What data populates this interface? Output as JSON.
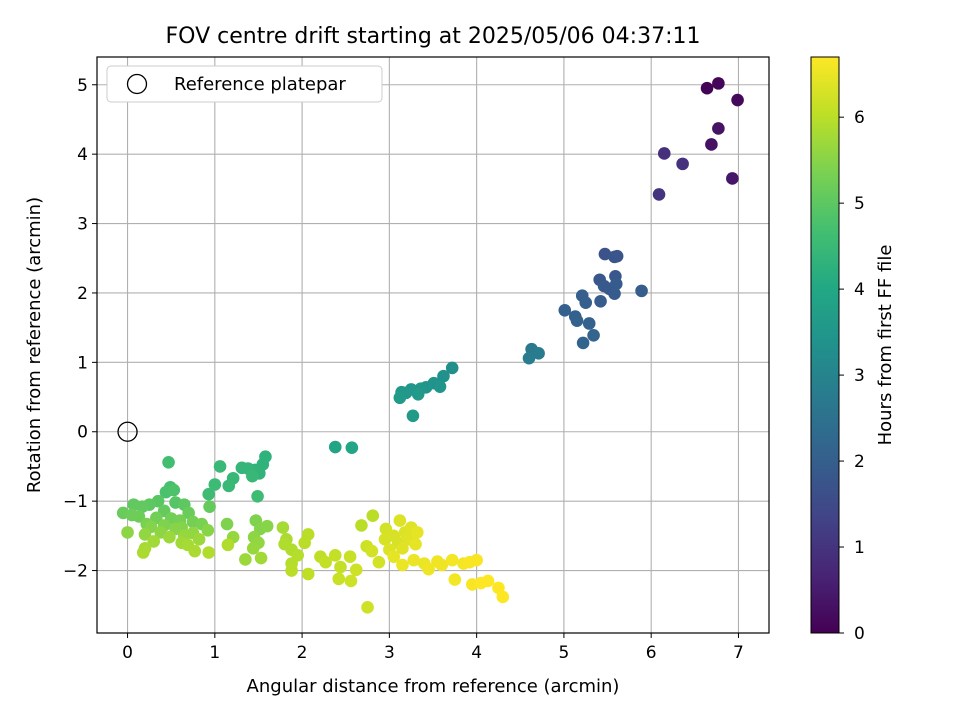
{
  "chart_data": {
    "type": "scatter",
    "title": "FOV centre drift starting at 2025/05/06 04:37:11",
    "xlabel": "Angular distance from reference (arcmin)",
    "ylabel": "Rotation from reference (arcmin)",
    "xlim": [
      -0.35,
      7.35
    ],
    "ylim": [
      -2.9,
      5.4
    ],
    "xticks": [
      0,
      1,
      2,
      3,
      4,
      5,
      6,
      7
    ],
    "yticks": [
      -2,
      -1,
      0,
      1,
      2,
      3,
      4,
      5
    ],
    "grid": true,
    "legend": {
      "placement": "top-left",
      "entries": [
        "Reference platepar"
      ]
    },
    "reference_point": {
      "x": 0,
      "y": 0,
      "marker": "open-circle"
    },
    "colorbar": {
      "label": "Hours from first FF file",
      "colormap": "viridis",
      "range": [
        0,
        6.7
      ],
      "ticks": [
        0,
        1,
        2,
        3,
        4,
        5,
        6
      ]
    },
    "points": [
      {
        "x": 6.64,
        "y": 4.95,
        "h": 0.05
      },
      {
        "x": 6.77,
        "y": 5.02,
        "h": 0.1
      },
      {
        "x": 6.99,
        "y": 4.78,
        "h": 0.15
      },
      {
        "x": 6.69,
        "y": 4.14,
        "h": 0.3
      },
      {
        "x": 6.77,
        "y": 4.37,
        "h": 0.35
      },
      {
        "x": 6.93,
        "y": 3.65,
        "h": 0.4
      },
      {
        "x": 6.15,
        "y": 4.01,
        "h": 0.9
      },
      {
        "x": 6.36,
        "y": 3.86,
        "h": 0.95
      },
      {
        "x": 6.09,
        "y": 3.42,
        "h": 1.0
      },
      {
        "x": 5.47,
        "y": 2.56,
        "h": 1.7
      },
      {
        "x": 5.58,
        "y": 2.52,
        "h": 1.75
      },
      {
        "x": 5.61,
        "y": 2.53,
        "h": 1.75
      },
      {
        "x": 5.41,
        "y": 2.19,
        "h": 1.8
      },
      {
        "x": 5.59,
        "y": 2.24,
        "h": 1.8
      },
      {
        "x": 5.46,
        "y": 2.1,
        "h": 1.85
      },
      {
        "x": 5.52,
        "y": 2.06,
        "h": 1.85
      },
      {
        "x": 5.6,
        "y": 2.13,
        "h": 1.9
      },
      {
        "x": 5.58,
        "y": 1.99,
        "h": 1.9
      },
      {
        "x": 5.42,
        "y": 1.88,
        "h": 1.95
      },
      {
        "x": 5.89,
        "y": 2.03,
        "h": 1.95
      },
      {
        "x": 5.21,
        "y": 1.96,
        "h": 2.0
      },
      {
        "x": 5.25,
        "y": 1.86,
        "h": 2.0
      },
      {
        "x": 5.01,
        "y": 1.75,
        "h": 2.05
      },
      {
        "x": 5.13,
        "y": 1.66,
        "h": 2.05
      },
      {
        "x": 5.15,
        "y": 1.6,
        "h": 2.1
      },
      {
        "x": 5.29,
        "y": 1.56,
        "h": 2.1
      },
      {
        "x": 5.34,
        "y": 1.39,
        "h": 2.15
      },
      {
        "x": 5.22,
        "y": 1.28,
        "h": 2.15
      },
      {
        "x": 4.63,
        "y": 1.19,
        "h": 2.7
      },
      {
        "x": 4.71,
        "y": 1.13,
        "h": 2.75
      },
      {
        "x": 4.6,
        "y": 1.06,
        "h": 2.8
      },
      {
        "x": 3.72,
        "y": 0.92,
        "h": 3.3
      },
      {
        "x": 3.62,
        "y": 0.8,
        "h": 3.35
      },
      {
        "x": 3.51,
        "y": 0.7,
        "h": 3.4
      },
      {
        "x": 3.58,
        "y": 0.65,
        "h": 3.45
      },
      {
        "x": 3.42,
        "y": 0.64,
        "h": 3.45
      },
      {
        "x": 3.36,
        "y": 0.62,
        "h": 3.5
      },
      {
        "x": 3.25,
        "y": 0.61,
        "h": 3.5
      },
      {
        "x": 3.14,
        "y": 0.57,
        "h": 3.55
      },
      {
        "x": 3.19,
        "y": 0.56,
        "h": 3.55
      },
      {
        "x": 3.33,
        "y": 0.54,
        "h": 3.6
      },
      {
        "x": 3.12,
        "y": 0.49,
        "h": 3.6
      },
      {
        "x": 3.27,
        "y": 0.23,
        "h": 3.65
      },
      {
        "x": 2.38,
        "y": -0.22,
        "h": 3.9
      },
      {
        "x": 2.57,
        "y": -0.23,
        "h": 3.95
      },
      {
        "x": 1.58,
        "y": -0.36,
        "h": 4.3
      },
      {
        "x": 1.55,
        "y": -0.47,
        "h": 4.3
      },
      {
        "x": 1.46,
        "y": -0.55,
        "h": 4.35
      },
      {
        "x": 1.51,
        "y": -0.6,
        "h": 4.35
      },
      {
        "x": 1.38,
        "y": -0.53,
        "h": 4.4
      },
      {
        "x": 1.31,
        "y": -0.52,
        "h": 4.4
      },
      {
        "x": 1.43,
        "y": -0.64,
        "h": 4.45
      },
      {
        "x": 1.21,
        "y": -0.67,
        "h": 4.45
      },
      {
        "x": 1.06,
        "y": -0.5,
        "h": 4.5
      },
      {
        "x": 1.16,
        "y": -0.78,
        "h": 4.5
      },
      {
        "x": 1.0,
        "y": -0.76,
        "h": 4.55
      },
      {
        "x": 0.93,
        "y": -0.9,
        "h": 4.6
      },
      {
        "x": 1.49,
        "y": -0.93,
        "h": 4.6
      },
      {
        "x": 0.47,
        "y": -0.44,
        "h": 4.65
      },
      {
        "x": 0.49,
        "y": -0.8,
        "h": 4.7
      },
      {
        "x": 0.44,
        "y": -0.87,
        "h": 4.75
      },
      {
        "x": 0.53,
        "y": -0.84,
        "h": 4.8
      },
      {
        "x": 0.55,
        "y": -1.02,
        "h": 4.9
      },
      {
        "x": 0.35,
        "y": -1.0,
        "h": 4.95
      },
      {
        "x": 0.65,
        "y": -1.05,
        "h": 5.0
      },
      {
        "x": 0.25,
        "y": -1.05,
        "h": 5.0
      },
      {
        "x": 0.07,
        "y": -1.05,
        "h": 5.05
      },
      {
        "x": 0.17,
        "y": -1.08,
        "h": 5.05
      },
      {
        "x": 0.94,
        "y": -1.08,
        "h": 5.1
      },
      {
        "x": 0.42,
        "y": -1.14,
        "h": 5.1
      },
      {
        "x": 0.7,
        "y": -1.17,
        "h": 5.15
      },
      {
        "x": -0.05,
        "y": -1.17,
        "h": 5.15
      },
      {
        "x": 0.05,
        "y": -1.2,
        "h": 5.2
      },
      {
        "x": 0.13,
        "y": -1.22,
        "h": 5.2
      },
      {
        "x": 0.33,
        "y": -1.24,
        "h": 5.25
      },
      {
        "x": 0.5,
        "y": -1.25,
        "h": 5.25
      },
      {
        "x": 0.6,
        "y": -1.28,
        "h": 5.3
      },
      {
        "x": 0.75,
        "y": -1.3,
        "h": 5.3
      },
      {
        "x": 0.85,
        "y": -1.33,
        "h": 5.35
      },
      {
        "x": 0.22,
        "y": -1.33,
        "h": 5.35
      },
      {
        "x": 1.14,
        "y": -1.33,
        "h": 5.4
      },
      {
        "x": 0.42,
        "y": -1.35,
        "h": 5.4
      },
      {
        "x": 0.27,
        "y": -1.37,
        "h": 5.45
      },
      {
        "x": 0.62,
        "y": -1.38,
        "h": 5.45
      },
      {
        "x": 0.55,
        "y": -1.4,
        "h": 5.5
      },
      {
        "x": 0.92,
        "y": -1.42,
        "h": 5.5
      },
      {
        "x": 0.0,
        "y": -1.45,
        "h": 5.55
      },
      {
        "x": 0.38,
        "y": -1.45,
        "h": 5.55
      },
      {
        "x": 0.75,
        "y": -1.46,
        "h": 5.6
      },
      {
        "x": 0.2,
        "y": -1.48,
        "h": 5.6
      },
      {
        "x": 0.65,
        "y": -1.5,
        "h": 5.65
      },
      {
        "x": 1.21,
        "y": -1.52,
        "h": 5.65
      },
      {
        "x": 0.48,
        "y": -1.52,
        "h": 5.7
      },
      {
        "x": 0.82,
        "y": -1.55,
        "h": 5.7
      },
      {
        "x": 0.3,
        "y": -1.58,
        "h": 5.75
      },
      {
        "x": 0.62,
        "y": -1.6,
        "h": 5.75
      },
      {
        "x": 0.69,
        "y": -1.63,
        "h": 5.8
      },
      {
        "x": 0.2,
        "y": -1.68,
        "h": 5.8
      },
      {
        "x": 0.77,
        "y": -1.72,
        "h": 5.85
      },
      {
        "x": 0.18,
        "y": -1.74,
        "h": 5.85
      },
      {
        "x": 0.93,
        "y": -1.74,
        "h": 5.9
      },
      {
        "x": 1.15,
        "y": -1.63,
        "h": 5.9
      },
      {
        "x": 1.47,
        "y": -1.28,
        "h": 5.4
      },
      {
        "x": 1.52,
        "y": -1.4,
        "h": 5.45
      },
      {
        "x": 1.6,
        "y": -1.36,
        "h": 5.5
      },
      {
        "x": 1.45,
        "y": -1.52,
        "h": 5.55
      },
      {
        "x": 1.5,
        "y": -1.6,
        "h": 5.6
      },
      {
        "x": 1.44,
        "y": -1.68,
        "h": 5.65
      },
      {
        "x": 1.35,
        "y": -1.84,
        "h": 5.7
      },
      {
        "x": 1.53,
        "y": -1.82,
        "h": 5.75
      },
      {
        "x": 1.78,
        "y": -1.38,
        "h": 5.8
      },
      {
        "x": 1.82,
        "y": -1.55,
        "h": 5.85
      },
      {
        "x": 1.88,
        "y": -1.7,
        "h": 5.9
      },
      {
        "x": 1.8,
        "y": -1.62,
        "h": 5.9
      },
      {
        "x": 1.95,
        "y": -1.78,
        "h": 5.95
      },
      {
        "x": 1.88,
        "y": -1.9,
        "h": 5.95
      },
      {
        "x": 1.88,
        "y": -2.0,
        "h": 6.0
      },
      {
        "x": 2.07,
        "y": -1.48,
        "h": 6.0
      },
      {
        "x": 2.03,
        "y": -1.6,
        "h": 6.0
      },
      {
        "x": 2.07,
        "y": -2.05,
        "h": 6.05
      },
      {
        "x": 2.21,
        "y": -1.8,
        "h": 6.05
      },
      {
        "x": 2.27,
        "y": -1.88,
        "h": 6.1
      },
      {
        "x": 2.38,
        "y": -1.78,
        "h": 6.1
      },
      {
        "x": 2.44,
        "y": -1.95,
        "h": 6.1
      },
      {
        "x": 2.42,
        "y": -2.12,
        "h": 6.15
      },
      {
        "x": 2.55,
        "y": -1.8,
        "h": 6.15
      },
      {
        "x": 2.56,
        "y": -2.15,
        "h": 6.2
      },
      {
        "x": 2.62,
        "y": -1.99,
        "h": 6.2
      },
      {
        "x": 2.68,
        "y": -1.35,
        "h": 6.0
      },
      {
        "x": 2.81,
        "y": -1.21,
        "h": 6.0
      },
      {
        "x": 2.75,
        "y": -2.53,
        "h": 6.2
      },
      {
        "x": 2.74,
        "y": -1.65,
        "h": 6.2
      },
      {
        "x": 2.8,
        "y": -1.72,
        "h": 6.25
      },
      {
        "x": 2.88,
        "y": -1.88,
        "h": 6.25
      },
      {
        "x": 2.96,
        "y": -1.4,
        "h": 6.25
      },
      {
        "x": 3.05,
        "y": -1.5,
        "h": 6.3
      },
      {
        "x": 3.1,
        "y": -1.6,
        "h": 6.3
      },
      {
        "x": 2.95,
        "y": -1.55,
        "h": 6.3
      },
      {
        "x": 3.0,
        "y": -1.7,
        "h": 6.35
      },
      {
        "x": 3.12,
        "y": -1.28,
        "h": 6.35
      },
      {
        "x": 3.18,
        "y": -1.45,
        "h": 6.35
      },
      {
        "x": 3.22,
        "y": -1.55,
        "h": 6.4
      },
      {
        "x": 3.25,
        "y": -1.38,
        "h": 6.4
      },
      {
        "x": 3.15,
        "y": -1.68,
        "h": 6.4
      },
      {
        "x": 3.05,
        "y": -1.8,
        "h": 6.45
      },
      {
        "x": 3.3,
        "y": -1.62,
        "h": 6.45
      },
      {
        "x": 3.32,
        "y": -1.45,
        "h": 6.45
      },
      {
        "x": 3.15,
        "y": -1.92,
        "h": 6.5
      },
      {
        "x": 3.28,
        "y": -1.85,
        "h": 6.5
      },
      {
        "x": 3.4,
        "y": -1.9,
        "h": 6.5
      },
      {
        "x": 3.45,
        "y": -1.98,
        "h": 6.55
      },
      {
        "x": 3.55,
        "y": -1.87,
        "h": 6.55
      },
      {
        "x": 3.6,
        "y": -1.92,
        "h": 6.55
      },
      {
        "x": 3.72,
        "y": -1.85,
        "h": 6.6
      },
      {
        "x": 3.75,
        "y": -2.13,
        "h": 6.6
      },
      {
        "x": 3.85,
        "y": -1.9,
        "h": 6.6
      },
      {
        "x": 3.92,
        "y": -1.88,
        "h": 6.65
      },
      {
        "x": 4.0,
        "y": -1.85,
        "h": 6.65
      },
      {
        "x": 3.95,
        "y": -2.2,
        "h": 6.65
      },
      {
        "x": 4.05,
        "y": -2.18,
        "h": 6.7
      },
      {
        "x": 4.13,
        "y": -2.15,
        "h": 6.7
      },
      {
        "x": 4.25,
        "y": -2.25,
        "h": 6.7
      },
      {
        "x": 4.3,
        "y": -2.38,
        "h": 6.7
      }
    ]
  }
}
